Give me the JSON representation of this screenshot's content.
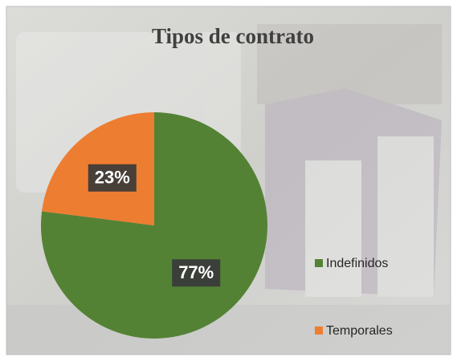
{
  "chart_data": {
    "type": "pie",
    "title": "Tipos de contrato",
    "categories": [
      "Indefinidos",
      "Temporales"
    ],
    "values": [
      77,
      23
    ],
    "value_labels": [
      "77%",
      "23%"
    ],
    "colors": [
      "#548235",
      "#ed7d31"
    ],
    "legend": "right"
  }
}
